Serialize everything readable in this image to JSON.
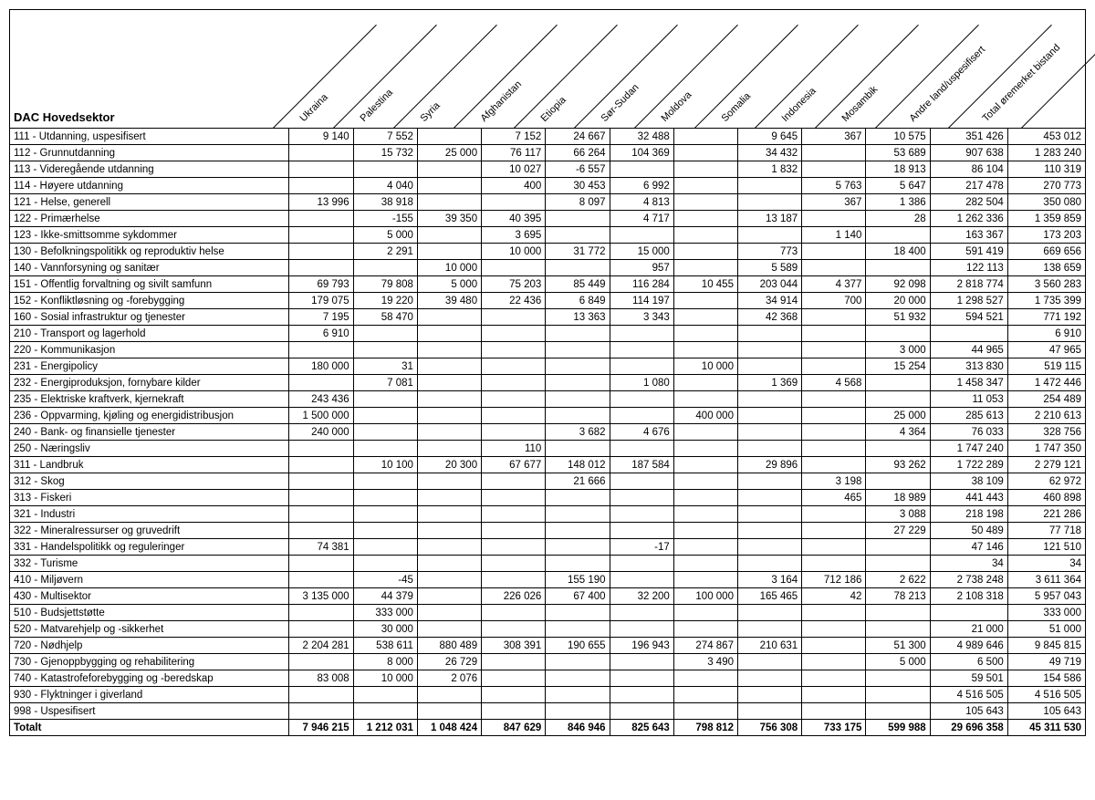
{
  "title": "DAC Hovedsektor",
  "columns": [
    "Ukraina",
    "Palestina",
    "Syria",
    "Afghanistan",
    "Etiopia",
    "Sør-Sudan",
    "Moldova",
    "Somalia",
    "Indonesia",
    "Mosambik",
    "Andre land/uspesifisert",
    "Total øremerket bistand"
  ],
  "label_col_width": 288,
  "num_col_width": 66,
  "wide_cols": [
    10,
    11
  ],
  "rows": [
    {
      "label": "111 - Utdanning, uspesifisert",
      "v": [
        "9 140",
        "7 552",
        "",
        "7 152",
        "24 667",
        "32 488",
        "",
        "9 645",
        "367",
        "10 575",
        "351 426",
        "453 012"
      ]
    },
    {
      "label": "112 - Grunnutdanning",
      "v": [
        "",
        "15 732",
        "25 000",
        "76 117",
        "66 264",
        "104 369",
        "",
        "34 432",
        "",
        "53 689",
        "907 638",
        "1 283 240"
      ]
    },
    {
      "label": "113 - Videregående utdanning",
      "v": [
        "",
        "",
        "",
        "10 027",
        "-6 557",
        "",
        "",
        "1 832",
        "",
        "18 913",
        "86 104",
        "110 319"
      ]
    },
    {
      "label": "114 - Høyere utdanning",
      "v": [
        "",
        "4 040",
        "",
        "400",
        "30 453",
        "6 992",
        "",
        "",
        "5 763",
        "5 647",
        "217 478",
        "270 773"
      ]
    },
    {
      "label": "121 - Helse, generell",
      "v": [
        "13 996",
        "38 918",
        "",
        "",
        "8 097",
        "4 813",
        "",
        "",
        "367",
        "1 386",
        "282 504",
        "350 080"
      ]
    },
    {
      "label": "122 - Primærhelse",
      "v": [
        "",
        "-155",
        "39 350",
        "40 395",
        "",
        "4 717",
        "",
        "13 187",
        "",
        "28",
        "1 262 336",
        "1 359 859"
      ]
    },
    {
      "label": "123 - Ikke-smittsomme sykdommer",
      "v": [
        "",
        "5 000",
        "",
        "3 695",
        "",
        "",
        "",
        "",
        "1 140",
        "",
        "163 367",
        "173 203"
      ]
    },
    {
      "label": "130 - Befolkningspolitikk og reproduktiv helse",
      "v": [
        "",
        "2 291",
        "",
        "10 000",
        "31 772",
        "15 000",
        "",
        "773",
        "",
        "18 400",
        "591 419",
        "669 656"
      ]
    },
    {
      "label": "140 - Vannforsyning og sanitær",
      "v": [
        "",
        "",
        "10 000",
        "",
        "",
        "957",
        "",
        "5 589",
        "",
        "",
        "122 113",
        "138 659"
      ]
    },
    {
      "label": "151 - Offentlig forvaltning og sivilt samfunn",
      "v": [
        "69 793",
        "79 808",
        "5 000",
        "75 203",
        "85 449",
        "116 284",
        "10 455",
        "203 044",
        "4 377",
        "92 098",
        "2 818 774",
        "3 560 283"
      ]
    },
    {
      "label": "152 - Konfliktløsning og -forebygging",
      "v": [
        "179 075",
        "19 220",
        "39 480",
        "22 436",
        "6 849",
        "114 197",
        "",
        "34 914",
        "700",
        "20 000",
        "1 298 527",
        "1 735 399"
      ]
    },
    {
      "label": "160 - Sosial infrastruktur og tjenester",
      "v": [
        "7 195",
        "58 470",
        "",
        "",
        "13 363",
        "3 343",
        "",
        "42 368",
        "",
        "51 932",
        "594 521",
        "771 192"
      ]
    },
    {
      "label": "210 - Transport og lagerhold",
      "v": [
        "6 910",
        "",
        "",
        "",
        "",
        "",
        "",
        "",
        "",
        "",
        "",
        "6 910"
      ]
    },
    {
      "label": "220 - Kommunikasjon",
      "v": [
        "",
        "",
        "",
        "",
        "",
        "",
        "",
        "",
        "",
        "3 000",
        "44 965",
        "47 965"
      ]
    },
    {
      "label": "231 - Energipolicy",
      "v": [
        "180 000",
        "31",
        "",
        "",
        "",
        "",
        "10 000",
        "",
        "",
        "15 254",
        "313 830",
        "519 115"
      ]
    },
    {
      "label": "232 - Energiproduksjon, fornybare kilder",
      "v": [
        "",
        "7 081",
        "",
        "",
        "",
        "1 080",
        "",
        "1 369",
        "4 568",
        "",
        "1 458 347",
        "1 472 446"
      ]
    },
    {
      "label": "235 - Elektriske kraftverk, kjernekraft",
      "v": [
        "243 436",
        "",
        "",
        "",
        "",
        "",
        "",
        "",
        "",
        "",
        "11 053",
        "254 489"
      ]
    },
    {
      "label": "236 - Oppvarming, kjøling og energidistribusjon",
      "v": [
        "1 500 000",
        "",
        "",
        "",
        "",
        "",
        "400 000",
        "",
        "",
        "25 000",
        "285 613",
        "2 210 613"
      ]
    },
    {
      "label": "240 - Bank- og finansielle tjenester",
      "v": [
        "240 000",
        "",
        "",
        "",
        "3 682",
        "4 676",
        "",
        "",
        "",
        "4 364",
        "76 033",
        "328 756"
      ]
    },
    {
      "label": "250 - Næringsliv",
      "v": [
        "",
        "",
        "",
        "110",
        "",
        "",
        "",
        "",
        "",
        "",
        "1 747 240",
        "1 747 350"
      ]
    },
    {
      "label": "311 - Landbruk",
      "v": [
        "",
        "10 100",
        "20 300",
        "67 677",
        "148 012",
        "187 584",
        "",
        "29 896",
        "",
        "93 262",
        "1 722 289",
        "2 279 121"
      ]
    },
    {
      "label": "312 - Skog",
      "v": [
        "",
        "",
        "",
        "",
        "21 666",
        "",
        "",
        "",
        "3 198",
        "",
        "38 109",
        "62 972"
      ]
    },
    {
      "label": "313 - Fiskeri",
      "v": [
        "",
        "",
        "",
        "",
        "",
        "",
        "",
        "",
        "465",
        "18 989",
        "441 443",
        "460 898"
      ]
    },
    {
      "label": "321 - Industri",
      "v": [
        "",
        "",
        "",
        "",
        "",
        "",
        "",
        "",
        "",
        "3 088",
        "218 198",
        "221 286"
      ]
    },
    {
      "label": "322 - Mineralressurser og gruvedrift",
      "v": [
        "",
        "",
        "",
        "",
        "",
        "",
        "",
        "",
        "",
        "27 229",
        "50 489",
        "77 718"
      ]
    },
    {
      "label": "331 - Handelspolitikk og reguleringer",
      "v": [
        "74 381",
        "",
        "",
        "",
        "",
        "-17",
        "",
        "",
        "",
        "",
        "47 146",
        "121 510"
      ]
    },
    {
      "label": "332 - Turisme",
      "v": [
        "",
        "",
        "",
        "",
        "",
        "",
        "",
        "",
        "",
        "",
        "34",
        "34"
      ]
    },
    {
      "label": "410 - Miljøvern",
      "v": [
        "",
        "-45",
        "",
        "",
        "155 190",
        "",
        "",
        "3 164",
        "712 186",
        "2 622",
        "2 738 248",
        "3 611 364"
      ]
    },
    {
      "label": "430 - Multisektor",
      "v": [
        "3 135 000",
        "44 379",
        "",
        "226 026",
        "67 400",
        "32 200",
        "100 000",
        "165 465",
        "42",
        "78 213",
        "2 108 318",
        "5 957 043"
      ]
    },
    {
      "label": "510 - Budsjettstøtte",
      "v": [
        "",
        "333 000",
        "",
        "",
        "",
        "",
        "",
        "",
        "",
        "",
        "",
        "333 000"
      ]
    },
    {
      "label": "520 - Matvarehjelp og -sikkerhet",
      "v": [
        "",
        "30 000",
        "",
        "",
        "",
        "",
        "",
        "",
        "",
        "",
        "21 000",
        "51 000"
      ]
    },
    {
      "label": "720 - Nødhjelp",
      "v": [
        "2 204 281",
        "538 611",
        "880 489",
        "308 391",
        "190 655",
        "196 943",
        "274 867",
        "210 631",
        "",
        "51 300",
        "4 989 646",
        "9 845 815"
      ]
    },
    {
      "label": "730 - Gjenoppbygging og rehabilitering",
      "v": [
        "",
        "8 000",
        "26 729",
        "",
        "",
        "",
        "3 490",
        "",
        "",
        "5 000",
        "6 500",
        "49 719"
      ]
    },
    {
      "label": "740 - Katastrofeforebygging og -beredskap",
      "v": [
        "83 008",
        "10 000",
        "2 076",
        "",
        "",
        "",
        "",
        "",
        "",
        "",
        "59 501",
        "154 586"
      ]
    },
    {
      "label": "930 - Flyktninger i giverland",
      "v": [
        "",
        "",
        "",
        "",
        "",
        "",
        "",
        "",
        "",
        "",
        "4 516 505",
        "4 516 505"
      ]
    },
    {
      "label": "998 - Uspesifisert",
      "v": [
        "",
        "",
        "",
        "",
        "",
        "",
        "",
        "",
        "",
        "",
        "105 643",
        "105 643"
      ]
    }
  ],
  "total": {
    "label": "Totalt",
    "v": [
      "7 946 215",
      "1 212 031",
      "1 048 424",
      "847 629",
      "846 946",
      "825 643",
      "798 812",
      "756 308",
      "733 175",
      "599 988",
      "29 696 358",
      "45 311 530"
    ]
  }
}
